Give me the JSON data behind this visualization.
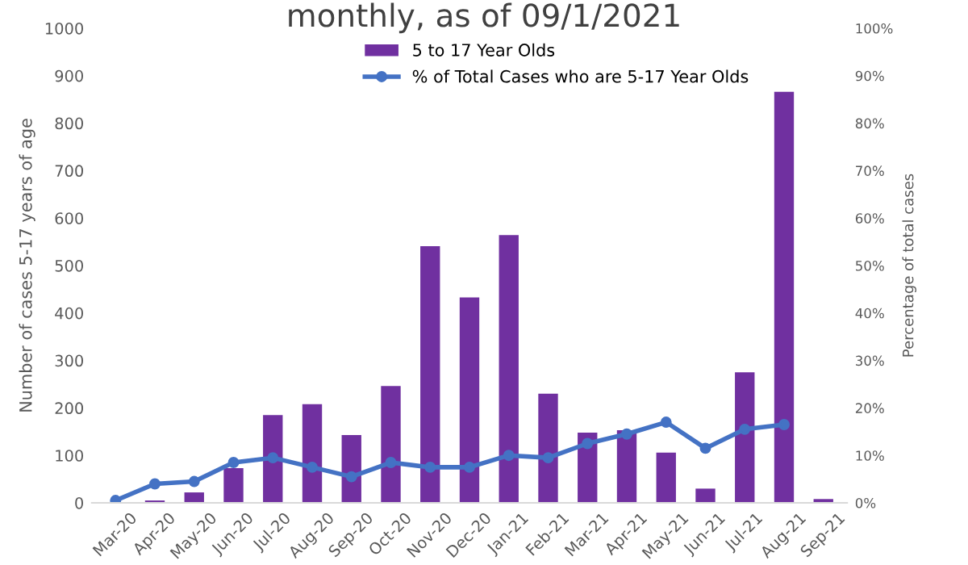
{
  "chart_data": {
    "type": "bar",
    "title": "monthly, as of 09/1/2021",
    "categories": [
      "Mar-20",
      "Apr-20",
      "May-20",
      "Jun-20",
      "Jul-20",
      "Aug-20",
      "Sep-20",
      "Oct-20",
      "Nov-20",
      "Dec-20",
      "Jan-21",
      "Feb-21",
      "Mar-21",
      "Apr-21",
      "May-21",
      "Jun-21",
      "Jul-21",
      "Aug-21",
      "Sep-21"
    ],
    "series": [
      {
        "name": "5 to 17 Year Olds",
        "color": "#7030a0",
        "values": [
          0,
          5,
          22,
          73,
          185,
          208,
          143,
          246,
          541,
          433,
          564,
          230,
          148,
          153,
          106,
          30,
          275,
          866,
          8
        ]
      },
      {
        "name": "% of Total Cases who are 5-17 Year Olds",
        "type": "line",
        "axis": "y2",
        "color": "#4472c4",
        "marker": "circle",
        "values": [
          0.5,
          4,
          4.5,
          8.5,
          9.5,
          7.5,
          5.5,
          8.5,
          7.5,
          7.5,
          10,
          9.5,
          12.5,
          14.5,
          17,
          11.5,
          15.5,
          16.5,
          null
        ]
      }
    ],
    "ylabel": "Number of cases 5-17 years of age",
    "y2label": "Percentage of total cases",
    "ylim": [
      0,
      1000
    ],
    "yticks": [
      0,
      100,
      200,
      300,
      400,
      500,
      600,
      700,
      800,
      900,
      1000
    ],
    "y2lim": [
      0,
      100
    ],
    "y2ticks": [
      {
        "value": 0,
        "label": "0%"
      },
      {
        "value": 10,
        "label": "10%"
      },
      {
        "value": 20,
        "label": "20%"
      },
      {
        "value": 30,
        "label": "30%"
      },
      {
        "value": 40,
        "label": "40%"
      },
      {
        "value": 50,
        "label": "50%"
      },
      {
        "value": 60,
        "label": "60%"
      },
      {
        "value": 70,
        "label": "70%"
      },
      {
        "value": 80,
        "label": "80%"
      },
      {
        "value": 90,
        "label": "90%"
      },
      {
        "value": 100,
        "label": "100%"
      }
    ],
    "grid": false,
    "legend": "top right"
  }
}
